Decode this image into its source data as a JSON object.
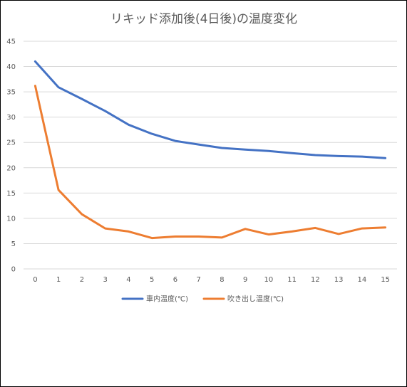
{
  "chart_data": {
    "type": "line",
    "title": "リキッド添加後(4日後)の温度変化",
    "xlabel": "",
    "ylabel": "",
    "x": [
      0,
      1,
      2,
      3,
      4,
      5,
      6,
      7,
      8,
      9,
      10,
      11,
      12,
      13,
      14,
      15
    ],
    "ylim": [
      0,
      45
    ],
    "yticks": [
      0,
      5,
      10,
      15,
      20,
      25,
      30,
      35,
      40,
      45
    ],
    "grid": true,
    "legend_position": "bottom",
    "series": [
      {
        "name": "車内温度(℃)",
        "color": "#4472c4",
        "values": [
          41.0,
          35.9,
          33.6,
          31.2,
          28.5,
          26.7,
          25.3,
          24.6,
          23.9,
          23.6,
          23.3,
          22.9,
          22.5,
          22.3,
          22.2,
          21.9
        ]
      },
      {
        "name": "吹き出し温度(℃)",
        "color": "#ed7d31",
        "values": [
          36.2,
          15.6,
          10.8,
          8.0,
          7.4,
          6.1,
          6.4,
          6.4,
          6.2,
          7.9,
          6.8,
          7.4,
          8.1,
          6.9,
          8.0,
          8.2
        ]
      }
    ]
  }
}
